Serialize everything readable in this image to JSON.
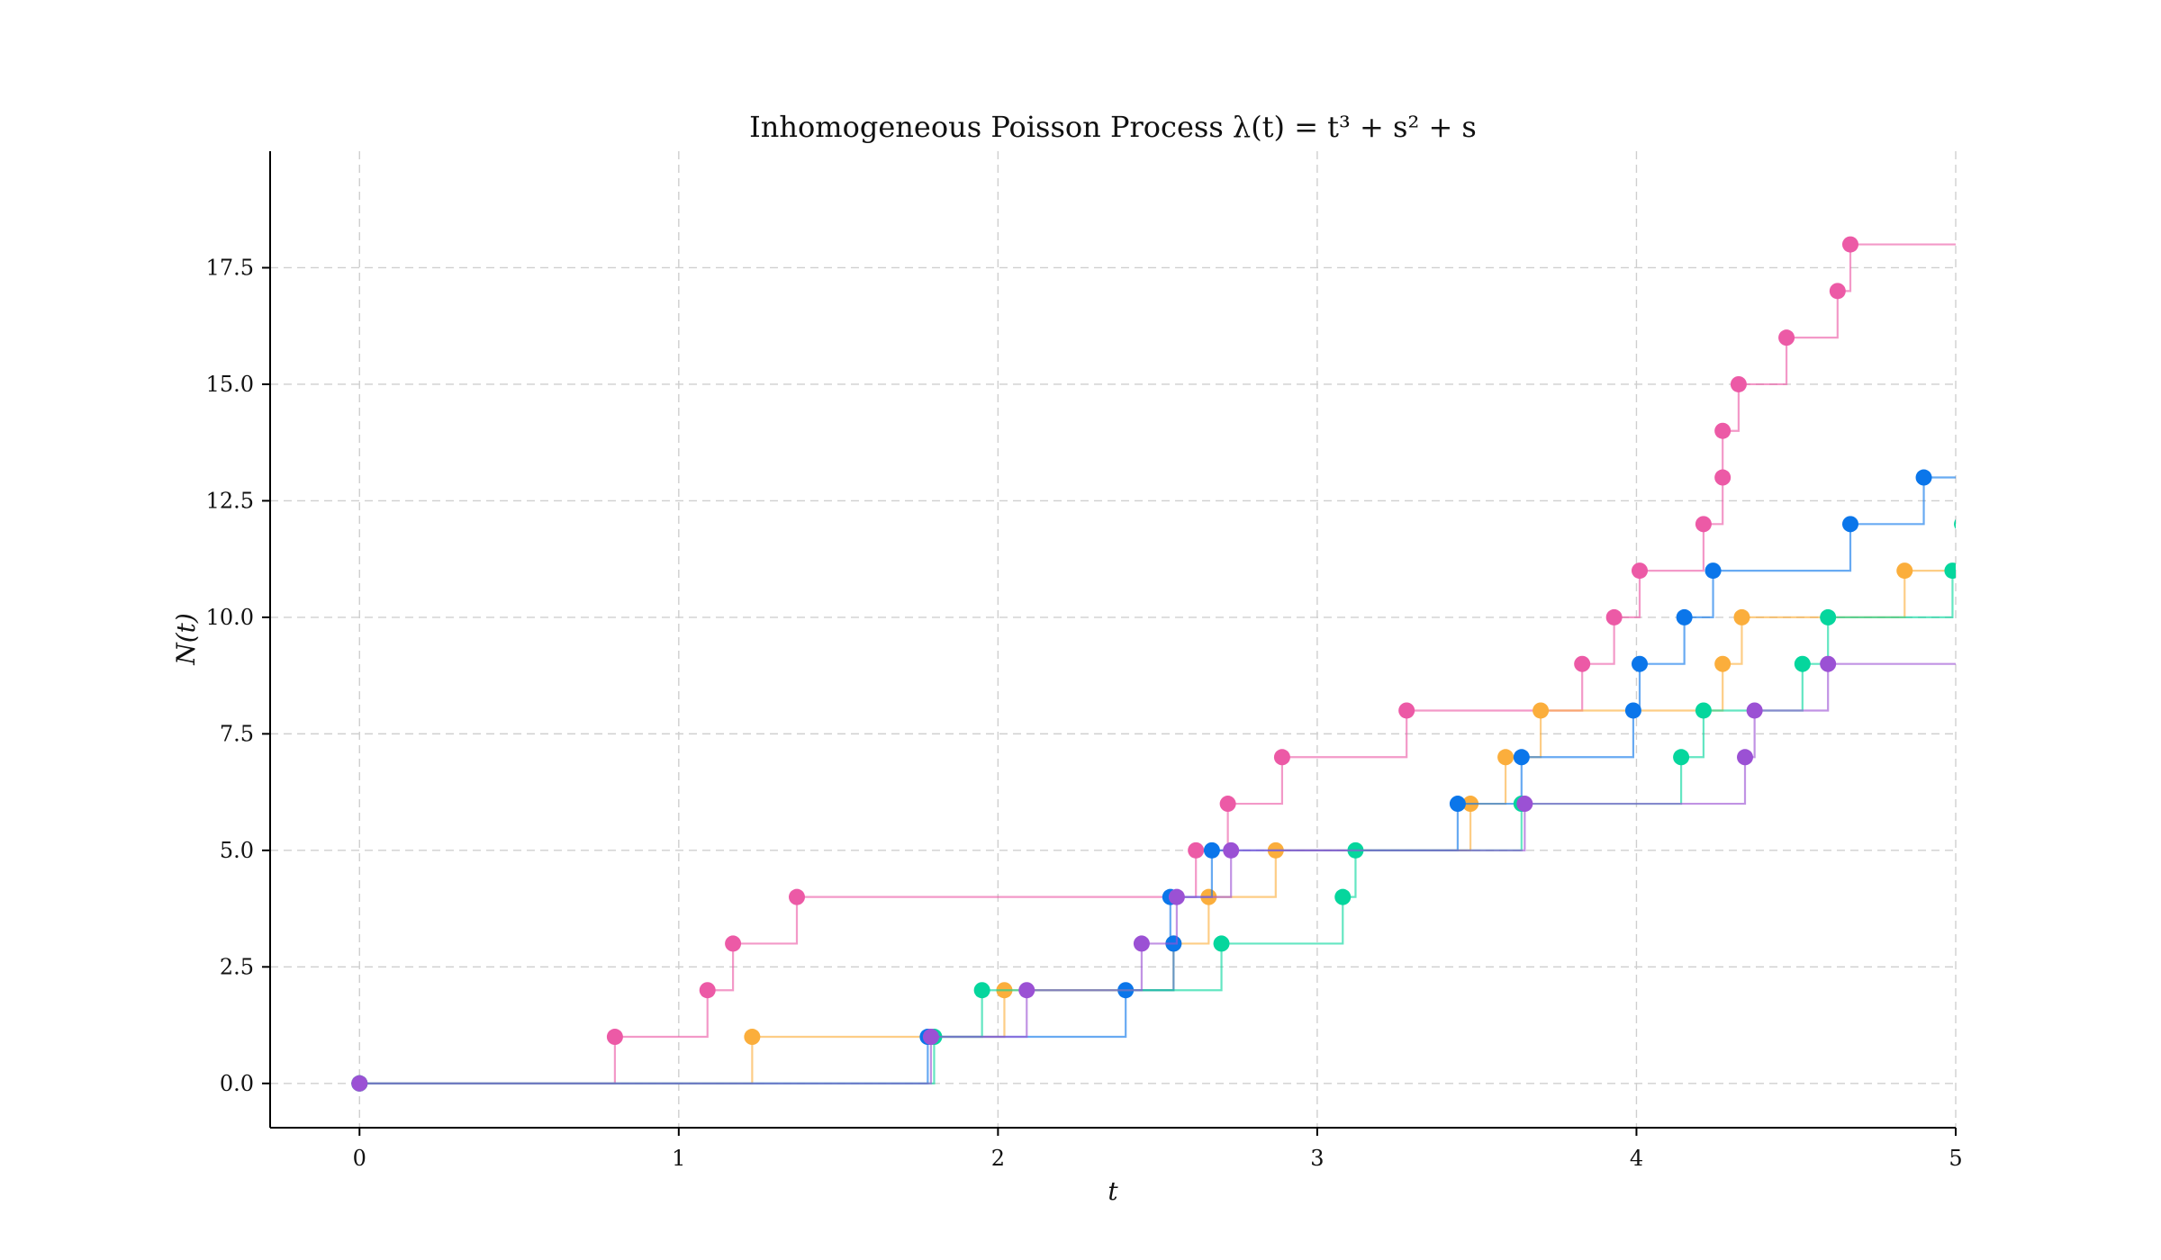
{
  "chart_data": {
    "type": "line",
    "subtype": "step",
    "title": "Inhomogeneous Poisson Process λ(t) = t³ + s² + s",
    "xlabel": "t",
    "ylabel": "N(t)",
    "xlim": [
      -0.28,
      5
    ],
    "ylim": [
      -0.95,
      20
    ],
    "xticks": [
      "0",
      "1",
      "2",
      "3",
      "4",
      "5"
    ],
    "yticks": [
      "0.0",
      "2.5",
      "5.0",
      "7.5",
      "10.0",
      "12.5",
      "15.0",
      "17.5"
    ],
    "grid": true,
    "legend": "none",
    "series": [
      {
        "color": "#EC5AA6",
        "jumps": [
          0.8,
          1.09,
          1.17,
          1.37,
          2.62,
          2.72,
          2.89,
          3.28,
          3.83,
          3.93,
          4.01,
          4.21,
          4.27,
          4.27,
          4.32,
          4.47,
          4.63,
          4.67
        ]
      },
      {
        "color": "#FBAE3C",
        "jumps": [
          1.23,
          2.02,
          2.55,
          2.66,
          2.87,
          3.48,
          3.59,
          3.7,
          4.27,
          4.33,
          4.84
        ]
      },
      {
        "color": "#0B76EA",
        "jumps": [
          1.78,
          2.4,
          2.55,
          2.54,
          2.67,
          3.44,
          3.64,
          3.99,
          4.01,
          4.15,
          4.24,
          4.67,
          4.9
        ]
      },
      {
        "color": "#05D69D",
        "jumps": [
          1.8,
          1.95,
          2.7,
          3.08,
          3.12,
          3.64,
          4.14,
          4.21,
          4.52,
          4.6,
          4.99,
          5.02
        ]
      },
      {
        "color": "#9B51D4",
        "jumps": [
          1.79,
          2.09,
          2.45,
          2.56,
          2.73,
          3.65,
          4.34,
          4.37,
          4.6
        ]
      }
    ]
  }
}
